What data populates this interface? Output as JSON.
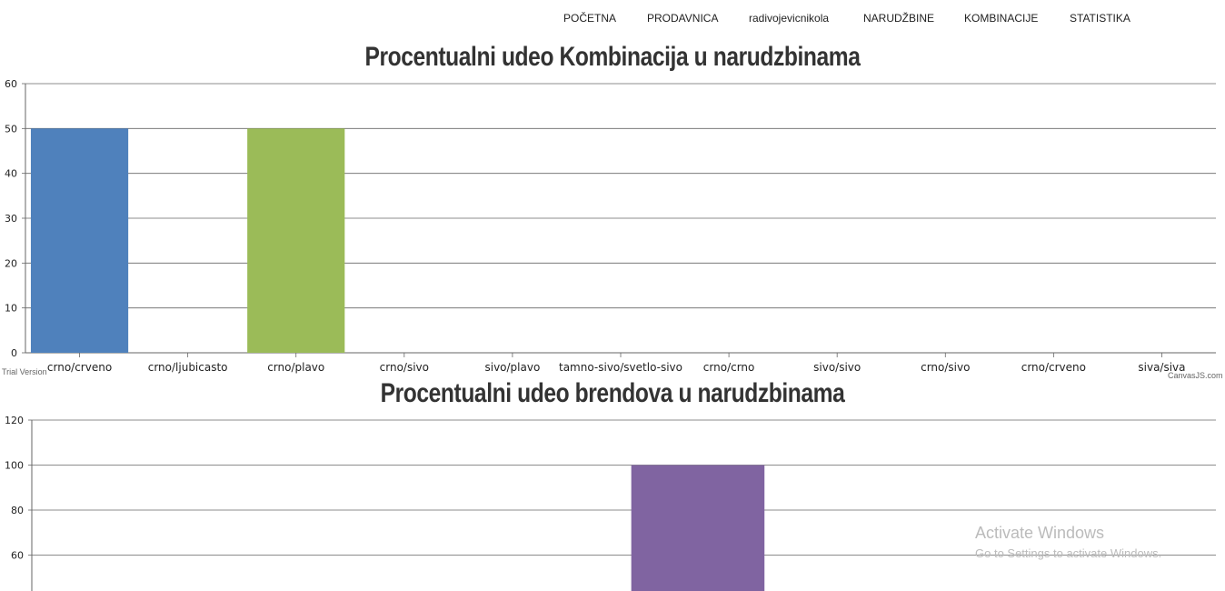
{
  "nav": {
    "items": [
      "POČETNA",
      "PRODAVNICA",
      "radivojevicnikola",
      "NARUDŽBINE",
      "KOMBINACIJE",
      "STATISTIKA"
    ]
  },
  "credits": {
    "trial": "Trial Version",
    "canvasjs": "CanvasJS.com"
  },
  "watermark": {
    "line1": "Activate Windows",
    "line2": "Go to Settings to activate Windows."
  },
  "chart_data": [
    {
      "type": "bar",
      "title": "Procentualni udeo Kombinacija u narudzbinama",
      "categories": [
        "crno/crveno",
        "crno/ljubicasto",
        "crno/plavo",
        "crno/sivo",
        "sivo/plavo",
        "tamno-sivo/svetlo-sivo",
        "crno/crno",
        "sivo/sivo",
        "crno/sivo",
        "crno/crveno",
        "siva/siva"
      ],
      "values": [
        50,
        0,
        50,
        0,
        0,
        0,
        0,
        0,
        0,
        0,
        0
      ],
      "colors": [
        "#4f81bc",
        "#c0504e",
        "#9bbb58",
        "#23bfaa",
        "#8064a1",
        "#4aacc5",
        "#f79647",
        "#7f6084",
        "#77a033",
        "#33558b",
        "#e59566"
      ],
      "yticks": [
        0,
        10,
        20,
        30,
        40,
        50,
        60
      ],
      "ylim": [
        0,
        60
      ],
      "grid": true
    },
    {
      "type": "bar",
      "title": "Procentualni udeo brendova u narudzbinama",
      "values": [
        0,
        0,
        0,
        0,
        100,
        0,
        0,
        0
      ],
      "colors": [
        "#4f81bc",
        "#c0504e",
        "#9bbb58",
        "#23bfaa",
        "#8064a1",
        "#4aacc5",
        "#f79647",
        "#7f6084"
      ],
      "yticks": [
        60,
        80,
        100,
        120
      ],
      "ylim": [
        0,
        120
      ],
      "grid": true
    }
  ]
}
